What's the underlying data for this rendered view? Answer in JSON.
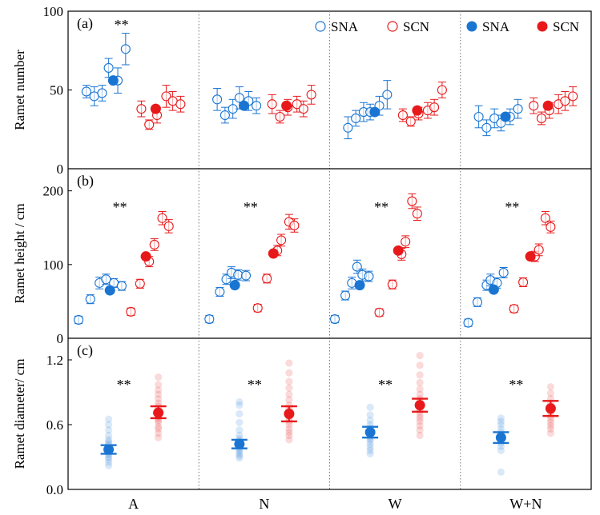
{
  "colors": {
    "sna": "#1a75d2",
    "scn": "#e8191b",
    "sna_light": "#a9c9ea",
    "scn_light": "#f6b1b1",
    "axis": "#000000",
    "divider": "#777777"
  },
  "chart_data": [
    {
      "id": "a",
      "type": "scatter",
      "panel_label": "(a)",
      "ylabel": "Ramet number",
      "ylim": [
        0,
        100
      ],
      "yticks": [
        0,
        50,
        100
      ],
      "legend": {
        "position": "top-right",
        "entries": [
          {
            "label": "SNA",
            "series": "sna",
            "style": "open"
          },
          {
            "label": "SCN",
            "series": "scn",
            "style": "open"
          },
          {
            "label": "SNA",
            "series": "sna",
            "style": "filled"
          },
          {
            "label": "SCN",
            "series": "scn",
            "style": "filled"
          }
        ]
      },
      "groups": [
        {
          "category": "A",
          "significance": "**",
          "sna": {
            "mean": 56,
            "points": [
              {
                "offset": -0.36,
                "y": 49,
                "err": 4
              },
              {
                "offset": -0.3,
                "y": 46,
                "err": 6
              },
              {
                "offset": -0.24,
                "y": 48,
                "err": 5
              },
              {
                "offset": -0.19,
                "y": 64,
                "err": 6
              },
              {
                "offset": -0.12,
                "y": 56,
                "err": 8
              },
              {
                "offset": -0.06,
                "y": 76,
                "err": 10
              }
            ]
          },
          "scn": {
            "mean": 38,
            "points": [
              {
                "offset": 0.06,
                "y": 38,
                "err": 5
              },
              {
                "offset": 0.12,
                "y": 28,
                "err": 3
              },
              {
                "offset": 0.18,
                "y": 34,
                "err": 5
              },
              {
                "offset": 0.25,
                "y": 46,
                "err": 7
              },
              {
                "offset": 0.3,
                "y": 43,
                "err": 6
              },
              {
                "offset": 0.36,
                "y": 41,
                "err": 5
              }
            ]
          }
        },
        {
          "category": "N",
          "significance": "",
          "sna": {
            "mean": 40,
            "points": [
              {
                "offset": -0.36,
                "y": 44,
                "err": 7
              },
              {
                "offset": -0.3,
                "y": 34,
                "err": 5
              },
              {
                "offset": -0.24,
                "y": 38,
                "err": 6
              },
              {
                "offset": -0.19,
                "y": 45,
                "err": 7
              },
              {
                "offset": -0.12,
                "y": 43,
                "err": 6
              },
              {
                "offset": -0.06,
                "y": 40,
                "err": 5
              }
            ]
          },
          "scn": {
            "mean": 40,
            "points": [
              {
                "offset": 0.06,
                "y": 41,
                "err": 6
              },
              {
                "offset": 0.12,
                "y": 33,
                "err": 4
              },
              {
                "offset": 0.18,
                "y": 39,
                "err": 5
              },
              {
                "offset": 0.25,
                "y": 41,
                "err": 5
              },
              {
                "offset": 0.3,
                "y": 38,
                "err": 5
              },
              {
                "offset": 0.36,
                "y": 47,
                "err": 6
              }
            ]
          }
        },
        {
          "category": "W",
          "significance": "",
          "sna": {
            "mean": 36,
            "points": [
              {
                "offset": -0.36,
                "y": 26,
                "err": 7
              },
              {
                "offset": -0.3,
                "y": 32,
                "err": 5
              },
              {
                "offset": -0.24,
                "y": 36,
                "err": 6
              },
              {
                "offset": -0.19,
                "y": 36,
                "err": 5
              },
              {
                "offset": -0.12,
                "y": 40,
                "err": 6
              },
              {
                "offset": -0.06,
                "y": 47,
                "err": 9
              }
            ]
          },
          "scn": {
            "mean": 37,
            "points": [
              {
                "offset": 0.06,
                "y": 34,
                "err": 4
              },
              {
                "offset": 0.12,
                "y": 30,
                "err": 3
              },
              {
                "offset": 0.18,
                "y": 35,
                "err": 4
              },
              {
                "offset": 0.25,
                "y": 37,
                "err": 5
              },
              {
                "offset": 0.3,
                "y": 39,
                "err": 5
              },
              {
                "offset": 0.36,
                "y": 50,
                "err": 5
              }
            ]
          }
        },
        {
          "category": "W+N",
          "significance": "",
          "sna": {
            "mean": 33,
            "points": [
              {
                "offset": -0.36,
                "y": 33,
                "err": 7
              },
              {
                "offset": -0.3,
                "y": 26,
                "err": 5
              },
              {
                "offset": -0.24,
                "y": 32,
                "err": 6
              },
              {
                "offset": -0.19,
                "y": 29,
                "err": 5
              },
              {
                "offset": -0.12,
                "y": 33,
                "err": 5
              },
              {
                "offset": -0.06,
                "y": 38,
                "err": 6
              }
            ]
          },
          "scn": {
            "mean": 40,
            "points": [
              {
                "offset": 0.06,
                "y": 40,
                "err": 5
              },
              {
                "offset": 0.12,
                "y": 32,
                "err": 4
              },
              {
                "offset": 0.18,
                "y": 37,
                "err": 5
              },
              {
                "offset": 0.25,
                "y": 41,
                "err": 6
              },
              {
                "offset": 0.3,
                "y": 43,
                "err": 6
              },
              {
                "offset": 0.36,
                "y": 46,
                "err": 6
              }
            ]
          }
        }
      ]
    },
    {
      "id": "b",
      "type": "scatter",
      "panel_label": "(b)",
      "ylabel": "Ramet  height / cm",
      "ylim": [
        0,
        230
      ],
      "yticks": [
        0,
        100,
        200
      ],
      "groups": [
        {
          "category": "A",
          "significance": "**",
          "sna": {
            "mean": 65,
            "points": [
              {
                "offset": -0.42,
                "y": 25,
                "err": 5
              },
              {
                "offset": -0.33,
                "y": 53,
                "err": 6
              },
              {
                "offset": -0.26,
                "y": 75,
                "err": 8
              },
              {
                "offset": -0.21,
                "y": 80,
                "err": 7
              },
              {
                "offset": -0.15,
                "y": 75,
                "err": 6
              },
              {
                "offset": -0.09,
                "y": 71,
                "err": 6
              }
            ]
          },
          "scn": {
            "mean": 111,
            "points": [
              {
                "offset": -0.02,
                "y": 36,
                "err": 5
              },
              {
                "offset": 0.05,
                "y": 74,
                "err": 6
              },
              {
                "offset": 0.12,
                "y": 104,
                "err": 7
              },
              {
                "offset": 0.16,
                "y": 127,
                "err": 8
              },
              {
                "offset": 0.22,
                "y": 163,
                "err": 9
              },
              {
                "offset": 0.27,
                "y": 152,
                "err": 9
              }
            ]
          }
        },
        {
          "category": "N",
          "significance": "**",
          "sna": {
            "mean": 72,
            "points": [
              {
                "offset": -0.42,
                "y": 26,
                "err": 5
              },
              {
                "offset": -0.34,
                "y": 63,
                "err": 6
              },
              {
                "offset": -0.29,
                "y": 80,
                "err": 7
              },
              {
                "offset": -0.25,
                "y": 89,
                "err": 8
              },
              {
                "offset": -0.2,
                "y": 86,
                "err": 7
              },
              {
                "offset": -0.14,
                "y": 85,
                "err": 7
              }
            ]
          },
          "scn": {
            "mean": 115,
            "points": [
              {
                "offset": -0.05,
                "y": 41,
                "err": 5
              },
              {
                "offset": 0.02,
                "y": 81,
                "err": 6
              },
              {
                "offset": 0.1,
                "y": 119,
                "err": 7
              },
              {
                "offset": 0.13,
                "y": 133,
                "err": 8
              },
              {
                "offset": 0.19,
                "y": 158,
                "err": 10
              },
              {
                "offset": 0.23,
                "y": 153,
                "err": 9
              }
            ]
          }
        },
        {
          "category": "W",
          "significance": "**",
          "sna": {
            "mean": 72,
            "points": [
              {
                "offset": -0.46,
                "y": 26,
                "err": 5
              },
              {
                "offset": -0.38,
                "y": 58,
                "err": 6
              },
              {
                "offset": -0.33,
                "y": 75,
                "err": 8
              },
              {
                "offset": -0.29,
                "y": 97,
                "err": 9
              },
              {
                "offset": -0.25,
                "y": 86,
                "err": 8
              },
              {
                "offset": -0.2,
                "y": 84,
                "err": 7
              }
            ]
          },
          "scn": {
            "mean": 119,
            "points": [
              {
                "offset": -0.12,
                "y": 35,
                "err": 5
              },
              {
                "offset": -0.02,
                "y": 73,
                "err": 6
              },
              {
                "offset": 0.05,
                "y": 114,
                "err": 8
              },
              {
                "offset": 0.08,
                "y": 131,
                "err": 8
              },
              {
                "offset": 0.13,
                "y": 186,
                "err": 10
              },
              {
                "offset": 0.17,
                "y": 169,
                "err": 9
              }
            ]
          }
        },
        {
          "category": "W+N",
          "significance": "**",
          "sna": {
            "mean": 66,
            "points": [
              {
                "offset": -0.44,
                "y": 21,
                "err": 5
              },
              {
                "offset": -0.37,
                "y": 49,
                "err": 6
              },
              {
                "offset": -0.3,
                "y": 72,
                "err": 7
              },
              {
                "offset": -0.27,
                "y": 79,
                "err": 8
              },
              {
                "offset": -0.22,
                "y": 75,
                "err": 7
              },
              {
                "offset": -0.17,
                "y": 89,
                "err": 7
              }
            ]
          },
          "scn": {
            "mean": 111,
            "points": [
              {
                "offset": -0.09,
                "y": 40,
                "err": 5
              },
              {
                "offset": -0.02,
                "y": 76,
                "err": 6
              },
              {
                "offset": 0.07,
                "y": 111,
                "err": 7
              },
              {
                "offset": 0.1,
                "y": 120,
                "err": 8
              },
              {
                "offset": 0.15,
                "y": 163,
                "err": 9
              },
              {
                "offset": 0.19,
                "y": 151,
                "err": 8
              }
            ]
          }
        }
      ]
    },
    {
      "id": "c",
      "type": "scatter",
      "panel_label": "(c)",
      "ylabel": "Ramet  diameter/ cm",
      "ylim": [
        0,
        1.4
      ],
      "yticks": [
        0.0,
        0.6,
        1.2
      ],
      "ytick_labels": [
        "0.0",
        "0.6",
        "1.2"
      ],
      "groups": [
        {
          "category": "A",
          "significance": "**",
          "sna": {
            "mean": 0.37,
            "ci": [
              0.33,
              0.41
            ],
            "points": [
              0.22,
              0.25,
              0.28,
              0.3,
              0.32,
              0.34,
              0.35,
              0.36,
              0.38,
              0.4,
              0.42,
              0.44,
              0.46,
              0.5,
              0.55,
              0.6,
              0.65
            ]
          },
          "scn": {
            "mean": 0.71,
            "ci": [
              0.66,
              0.77
            ],
            "points": [
              0.48,
              0.52,
              0.56,
              0.58,
              0.62,
              0.64,
              0.66,
              0.68,
              0.7,
              0.72,
              0.74,
              0.77,
              0.8,
              0.84,
              0.88,
              0.92,
              0.97,
              1.04
            ]
          }
        },
        {
          "category": "N",
          "significance": "**",
          "sna": {
            "mean": 0.42,
            "ci": [
              0.38,
              0.46
            ],
            "points": [
              0.29,
              0.31,
              0.33,
              0.35,
              0.37,
              0.39,
              0.41,
              0.43,
              0.45,
              0.47,
              0.5,
              0.55,
              0.62,
              0.7,
              0.78,
              0.81
            ]
          },
          "scn": {
            "mean": 0.7,
            "ci": [
              0.63,
              0.77
            ],
            "points": [
              0.46,
              0.5,
              0.53,
              0.56,
              0.6,
              0.63,
              0.66,
              0.69,
              0.72,
              0.75,
              0.78,
              0.83,
              0.88,
              0.94,
              1.0,
              1.08,
              1.17
            ]
          }
        },
        {
          "category": "W",
          "significance": "**",
          "sna": {
            "mean": 0.53,
            "ci": [
              0.48,
              0.58
            ],
            "points": [
              0.33,
              0.36,
              0.39,
              0.42,
              0.45,
              0.47,
              0.49,
              0.51,
              0.53,
              0.55,
              0.57,
              0.6,
              0.64,
              0.69,
              0.76
            ]
          },
          "scn": {
            "mean": 0.78,
            "ci": [
              0.72,
              0.84
            ],
            "points": [
              0.5,
              0.55,
              0.59,
              0.63,
              0.66,
              0.69,
              0.72,
              0.75,
              0.78,
              0.81,
              0.84,
              0.88,
              0.93,
              0.99,
              1.06,
              1.15,
              1.24
            ]
          }
        },
        {
          "category": "W+N",
          "significance": "**",
          "sna": {
            "mean": 0.48,
            "ci": [
              0.43,
              0.53
            ],
            "points": [
              0.16,
              0.36,
              0.4,
              0.43,
              0.46,
              0.48,
              0.5,
              0.53,
              0.56,
              0.6,
              0.63,
              0.66
            ]
          },
          "scn": {
            "mean": 0.75,
            "ci": [
              0.68,
              0.82
            ],
            "points": [
              0.52,
              0.56,
              0.59,
              0.62,
              0.65,
              0.68,
              0.71,
              0.74,
              0.77,
              0.8,
              0.84,
              0.89,
              0.95
            ]
          }
        }
      ]
    }
  ],
  "x_categories": [
    "A",
    "N",
    "W",
    "W+N"
  ]
}
